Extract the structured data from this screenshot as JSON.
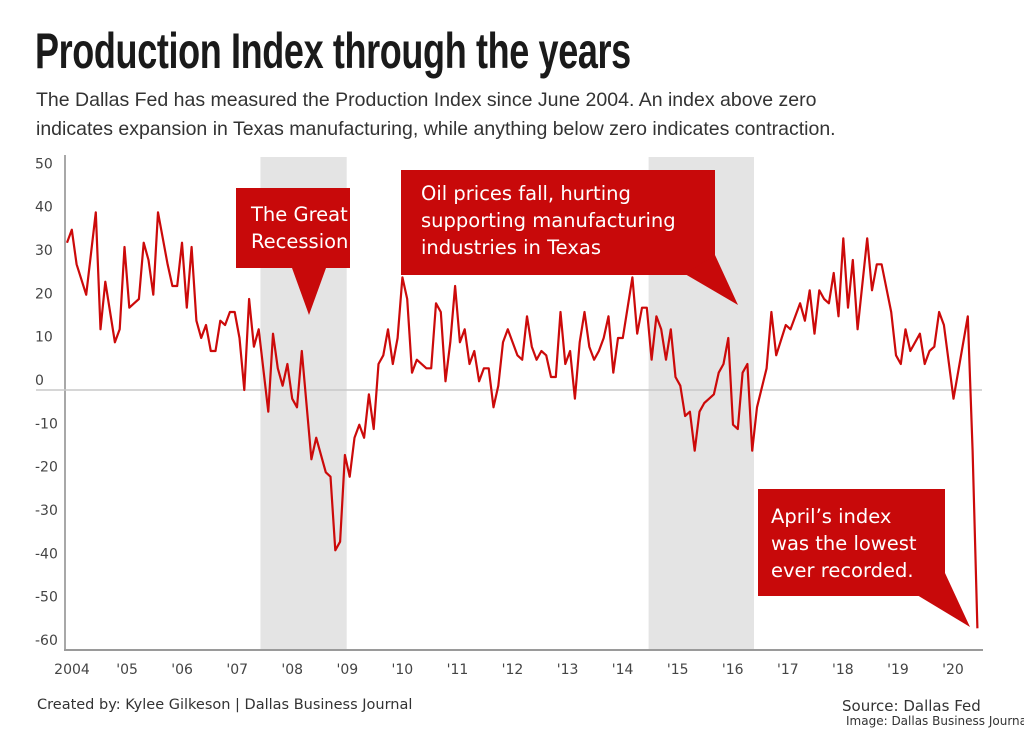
{
  "chart_data": {
    "type": "line",
    "title": "Production Index through the years",
    "subtitle_lines": [
      "The Dallas Fed has measured the Production Index since June 2004. An index above zero",
      "indicates expansion in Texas manufacturing, while anything below zero indicates contraction."
    ],
    "xlabel": "",
    "ylabel": "",
    "ylim": [
      -60,
      50
    ],
    "y_ticks": [
      50,
      40,
      30,
      20,
      10,
      0,
      -10,
      -20,
      -30,
      -40,
      -50,
      -60
    ],
    "y_tick_labels": [
      "50",
      "40",
      "30",
      "20",
      "10",
      "0",
      "-10",
      "-20",
      "-30",
      "-40",
      "-50",
      "-60"
    ],
    "x_tick_labels": [
      "2004",
      "'05",
      "'06",
      "'07",
      "'08",
      "'09",
      "'10",
      "'11",
      "'12",
      "'13",
      "'14",
      "'15",
      "'16",
      "'17",
      "'18",
      "'19",
      "'20"
    ],
    "grid": false,
    "zero_line": true,
    "line_color": "#cc0a0a",
    "shade_color": "#e4e4e4",
    "callout_color": "#c8090a",
    "shaded_periods": [
      {
        "start": "2007-11",
        "end": "2009-05"
      },
      {
        "start": "2014-08",
        "end": "2016-06"
      }
    ],
    "annotations": [
      {
        "lines": [
          "The Great",
          "Recession"
        ]
      },
      {
        "lines": [
          "Oil prices fall, hurting",
          "supporting manufacturing",
          "industries in Texas"
        ]
      },
      {
        "lines": [
          "April’s index",
          "was the lowest",
          "ever recorded."
        ]
      }
    ],
    "series": [
      {
        "points": [
          [
            "2004-06",
            34
          ],
          [
            "2004-07",
            37
          ],
          [
            "2004-08",
            29
          ],
          [
            "2004-10",
            22
          ],
          [
            "2004-12",
            41
          ],
          [
            "2005-01",
            14
          ],
          [
            "2005-02",
            25
          ],
          [
            "2005-04",
            11
          ],
          [
            "2005-05",
            14
          ],
          [
            "2005-06",
            33
          ],
          [
            "2005-07",
            19
          ],
          [
            "2005-08",
            20
          ],
          [
            "2005-09",
            21
          ],
          [
            "2005-10",
            34
          ],
          [
            "2005-11",
            30
          ],
          [
            "2005-12",
            22
          ],
          [
            "2006-01",
            41
          ],
          [
            "2006-03",
            29
          ],
          [
            "2006-04",
            24
          ],
          [
            "2006-05",
            24
          ],
          [
            "2006-06",
            34
          ],
          [
            "2006-07",
            19
          ],
          [
            "2006-08",
            33
          ],
          [
            "2006-09",
            16
          ],
          [
            "2006-10",
            12
          ],
          [
            "2006-11",
            15
          ],
          [
            "2006-12",
            9
          ],
          [
            "2007-01",
            9
          ],
          [
            "2007-02",
            16
          ],
          [
            "2007-03",
            15
          ],
          [
            "2007-04",
            18
          ],
          [
            "2007-05",
            18
          ],
          [
            "2007-06",
            12
          ],
          [
            "2007-07",
            0
          ],
          [
            "2007-08",
            21
          ],
          [
            "2007-09",
            10
          ],
          [
            "2007-10",
            14
          ],
          [
            "2007-12",
            -5
          ],
          [
            "2008-01",
            13
          ],
          [
            "2008-02",
            5
          ],
          [
            "2008-03",
            1
          ],
          [
            "2008-04",
            6
          ],
          [
            "2008-05",
            -2
          ],
          [
            "2008-06",
            -4
          ],
          [
            "2008-07",
            9
          ],
          [
            "2008-09",
            -16
          ],
          [
            "2008-10",
            -11
          ],
          [
            "2008-12",
            -19
          ],
          [
            "2009-01",
            -20
          ],
          [
            "2009-02",
            -37
          ],
          [
            "2009-03",
            -35
          ],
          [
            "2009-04",
            -15
          ],
          [
            "2009-05",
            -20
          ],
          [
            "2009-06",
            -11
          ],
          [
            "2009-07",
            -8
          ],
          [
            "2009-08",
            -11
          ],
          [
            "2009-09",
            -1
          ],
          [
            "2009-10",
            -9
          ],
          [
            "2009-11",
            6
          ],
          [
            "2009-12",
            8
          ],
          [
            "2010-01",
            14
          ],
          [
            "2010-02",
            6
          ],
          [
            "2010-03",
            12
          ],
          [
            "2010-04",
            26
          ],
          [
            "2010-05",
            21
          ],
          [
            "2010-06",
            4
          ],
          [
            "2010-07",
            7
          ],
          [
            "2010-09",
            5
          ],
          [
            "2010-10",
            5
          ],
          [
            "2010-11",
            20
          ],
          [
            "2010-12",
            18
          ],
          [
            "2011-01",
            2
          ],
          [
            "2011-02",
            11
          ],
          [
            "2011-03",
            24
          ],
          [
            "2011-04",
            11
          ],
          [
            "2011-05",
            14
          ],
          [
            "2011-06",
            6
          ],
          [
            "2011-07",
            9
          ],
          [
            "2011-08",
            2
          ],
          [
            "2011-09",
            5
          ],
          [
            "2011-10",
            5
          ],
          [
            "2011-11",
            -4
          ],
          [
            "2011-12",
            1
          ],
          [
            "2012-01",
            11
          ],
          [
            "2012-02",
            14
          ],
          [
            "2012-03",
            11
          ],
          [
            "2012-04",
            8
          ],
          [
            "2012-05",
            7
          ],
          [
            "2012-06",
            17
          ],
          [
            "2012-07",
            10
          ],
          [
            "2012-08",
            7
          ],
          [
            "2012-09",
            9
          ],
          [
            "2012-10",
            8
          ],
          [
            "2012-11",
            3
          ],
          [
            "2012-12",
            3
          ],
          [
            "2013-01",
            18
          ],
          [
            "2013-02",
            6
          ],
          [
            "2013-03",
            9
          ],
          [
            "2013-04",
            -2
          ],
          [
            "2013-05",
            11
          ],
          [
            "2013-06",
            18
          ],
          [
            "2013-07",
            10
          ],
          [
            "2013-08",
            7
          ],
          [
            "2013-09",
            9
          ],
          [
            "2013-10",
            12
          ],
          [
            "2013-11",
            17
          ],
          [
            "2013-12",
            4
          ],
          [
            "2014-01",
            12
          ],
          [
            "2014-02",
            12
          ],
          [
            "2014-03",
            19
          ],
          [
            "2014-04",
            26
          ],
          [
            "2014-05",
            13
          ],
          [
            "2014-06",
            19
          ],
          [
            "2014-07",
            19
          ],
          [
            "2014-08",
            7
          ],
          [
            "2014-09",
            17
          ],
          [
            "2014-10",
            14
          ],
          [
            "2014-11",
            7
          ],
          [
            "2014-12",
            14
          ],
          [
            "2015-01",
            3
          ],
          [
            "2015-02",
            1
          ],
          [
            "2015-03",
            -6
          ],
          [
            "2015-04",
            -5
          ],
          [
            "2015-05",
            -14
          ],
          [
            "2015-06",
            -5
          ],
          [
            "2015-07",
            -3
          ],
          [
            "2015-08",
            -2
          ],
          [
            "2015-09",
            -1
          ],
          [
            "2015-10",
            4
          ],
          [
            "2015-11",
            6
          ],
          [
            "2015-12",
            12
          ],
          [
            "2016-01",
            -8
          ],
          [
            "2016-02",
            -9
          ],
          [
            "2016-03",
            4
          ],
          [
            "2016-04",
            6
          ],
          [
            "2016-05",
            -14
          ],
          [
            "2016-06",
            -4
          ],
          [
            "2016-08",
            5
          ],
          [
            "2016-09",
            18
          ],
          [
            "2016-10",
            8
          ],
          [
            "2016-12",
            15
          ],
          [
            "2017-01",
            14
          ],
          [
            "2017-02",
            17
          ],
          [
            "2017-03",
            20
          ],
          [
            "2017-04",
            16
          ],
          [
            "2017-05",
            23
          ],
          [
            "2017-06",
            13
          ],
          [
            "2017-07",
            23
          ],
          [
            "2017-08",
            21
          ],
          [
            "2017-09",
            20
          ],
          [
            "2017-10",
            27
          ],
          [
            "2017-11",
            17
          ],
          [
            "2017-12",
            35
          ],
          [
            "2018-01",
            19
          ],
          [
            "2018-02",
            30
          ],
          [
            "2018-03",
            14
          ],
          [
            "2018-05",
            35
          ],
          [
            "2018-06",
            23
          ],
          [
            "2018-07",
            29
          ],
          [
            "2018-08",
            29
          ],
          [
            "2018-10",
            18
          ],
          [
            "2018-11",
            8
          ],
          [
            "2018-12",
            6
          ],
          [
            "2019-01",
            14
          ],
          [
            "2019-02",
            9
          ],
          [
            "2019-04",
            13
          ],
          [
            "2019-05",
            6
          ],
          [
            "2019-06",
            9
          ],
          [
            "2019-07",
            10
          ],
          [
            "2019-08",
            18
          ],
          [
            "2019-09",
            15
          ],
          [
            "2019-11",
            -2
          ],
          [
            "2020-02",
            17
          ],
          [
            "2020-03",
            -14
          ],
          [
            "2020-04",
            -55
          ]
        ]
      }
    ]
  },
  "footer": {
    "credit": "Created by: Kylee Gilkeson | Dallas Business Journal",
    "source": "Source: Dallas Fed",
    "image_credit": "Image: Dallas Business Journal"
  }
}
